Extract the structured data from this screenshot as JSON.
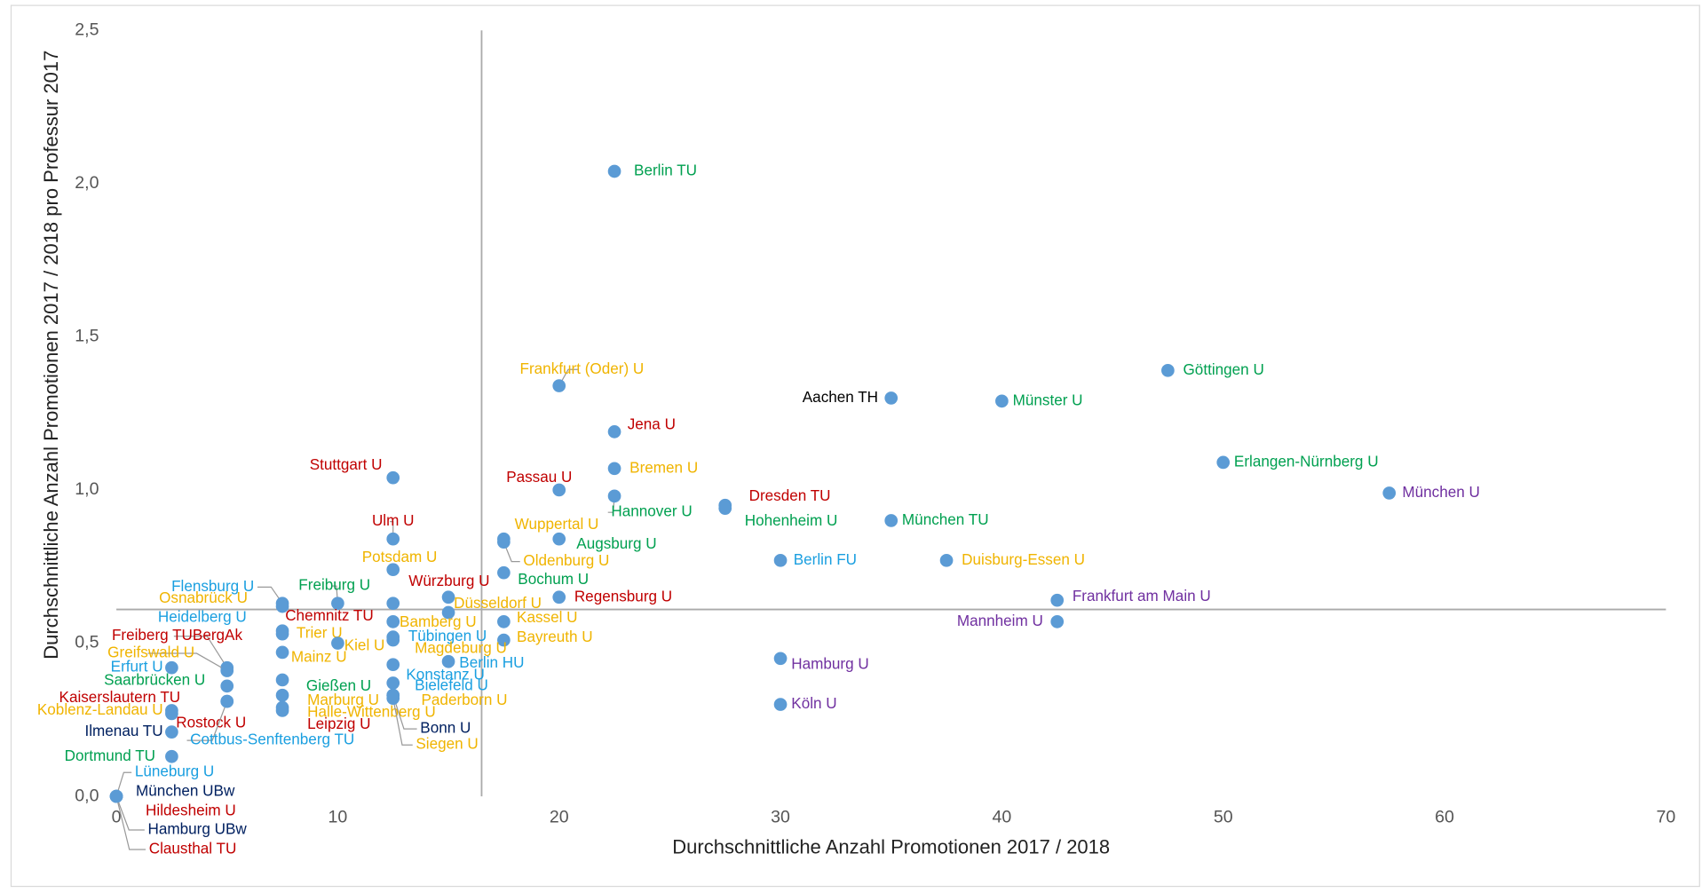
{
  "chart_data": {
    "type": "scatter",
    "x_label": "Durchschnittliche Anzahl Promotionen 2017 / 2018",
    "y_label": "Durchschnittliche Anzahl Promotionen 2017 / 2018 pro Professur 2017",
    "xlim": [
      0,
      70
    ],
    "ylim": [
      0,
      2.5
    ],
    "xticks": [
      0,
      10,
      20,
      30,
      40,
      50,
      60,
      70
    ],
    "yticks": [
      {
        "value": 0,
        "label": "0,0"
      },
      {
        "value": 0.5,
        "label": "0,5"
      },
      {
        "value": 1,
        "label": "1,0"
      },
      {
        "value": 1.5,
        "label": "1,5"
      },
      {
        "value": 2,
        "label": "2,0"
      },
      {
        "value": 2.5,
        "label": "2,5"
      }
    ],
    "reference_x": 16.5,
    "reference_y": 0.61,
    "marker_color": "#5b9bd5",
    "points": [
      {
        "name": "Berlin TU",
        "x": 22.5,
        "y": 2.04,
        "color": "#00a050"
      },
      {
        "name": "Göttingen U",
        "x": 47.5,
        "y": 1.39,
        "color": "#00a050"
      },
      {
        "name": "Frankfurt (Oder) U",
        "x": 20,
        "y": 1.34,
        "color": "#f0b400"
      },
      {
        "name": "Aachen TH",
        "x": 35,
        "y": 1.3,
        "color": "#000000"
      },
      {
        "name": "Münster U",
        "x": 40,
        "y": 1.29,
        "color": "#00a050"
      },
      {
        "name": "Jena U",
        "x": 22.5,
        "y": 1.19,
        "color": "#c00000"
      },
      {
        "name": "Bremen U",
        "x": 22.5,
        "y": 1.07,
        "color": "#f0b400"
      },
      {
        "name": "Erlangen-Nürnberg U",
        "x": 50,
        "y": 1.09,
        "color": "#00a050"
      },
      {
        "name": "Stuttgart U",
        "x": 12.5,
        "y": 1.04,
        "color": "#c00000"
      },
      {
        "name": "Passau U",
        "x": 20,
        "y": 1.0,
        "color": "#c00000"
      },
      {
        "name": "München U",
        "x": 57.5,
        "y": 0.99,
        "color": "#7030a0"
      },
      {
        "name": "Hannover U",
        "x": 22.5,
        "y": 0.98,
        "color": "#00a050"
      },
      {
        "name": "Dresden TU",
        "x": 27.5,
        "y": 0.95,
        "color": "#c00000"
      },
      {
        "name": "Hohenheim U",
        "x": 27.5,
        "y": 0.94,
        "color": "#00a050"
      },
      {
        "name": "München TU",
        "x": 35,
        "y": 0.9,
        "color": "#00a050"
      },
      {
        "name": "Ulm U",
        "x": 12.5,
        "y": 0.84,
        "color": "#c00000"
      },
      {
        "name": "Wuppertal U",
        "x": 17.5,
        "y": 0.84,
        "color": "#f0b400"
      },
      {
        "name": "Augsburg U",
        "x": 20,
        "y": 0.84,
        "color": "#00a050"
      },
      {
        "name": "Oldenburg U",
        "x": 17.5,
        "y": 0.83,
        "color": "#f0b400"
      },
      {
        "name": "Bochum U",
        "x": 17.5,
        "y": 0.73,
        "color": "#00a050"
      },
      {
        "name": "Berlin FU",
        "x": 30,
        "y": 0.77,
        "color": "#1a9fe0"
      },
      {
        "name": "Duisburg-Essen U",
        "x": 37.5,
        "y": 0.77,
        "color": "#f0b400"
      },
      {
        "name": "Potsdam U",
        "x": 12.5,
        "y": 0.74,
        "color": "#f0b400"
      },
      {
        "name": "Würzburg U",
        "x": 15,
        "y": 0.65,
        "color": "#c00000"
      },
      {
        "name": "Regensburg U",
        "x": 20,
        "y": 0.65,
        "color": "#c00000"
      },
      {
        "name": "Frankfurt am Main U",
        "x": 42.5,
        "y": 0.64,
        "color": "#7030a0"
      },
      {
        "name": "Flensburg U",
        "x": 7.5,
        "y": 0.63,
        "color": "#1a9fe0"
      },
      {
        "name": "Freiburg U",
        "x": 10,
        "y": 0.63,
        "color": "#00a050"
      },
      {
        "name": "Chemnitz TU",
        "x": 12.5,
        "y": 0.63,
        "color": "#c00000"
      },
      {
        "name": "Osnabrück U",
        "x": 7.5,
        "y": 0.62,
        "color": "#f0b400"
      },
      {
        "name": "Düsseldorf U",
        "x": 15,
        "y": 0.6,
        "color": "#f0b400"
      },
      {
        "name": "Kassel U",
        "x": 17.5,
        "y": 0.57,
        "color": "#f0b400"
      },
      {
        "name": "Bamberg U",
        "x": 12.5,
        "y": 0.57,
        "color": "#f0b400"
      },
      {
        "name": "Mannheim U",
        "x": 42.5,
        "y": 0.57,
        "color": "#7030a0"
      },
      {
        "name": "Heidelberg U",
        "x": 7.5,
        "y": 0.54,
        "color": "#1a9fe0"
      },
      {
        "name": "Trier U",
        "x": 7.5,
        "y": 0.53,
        "color": "#f0b400"
      },
      {
        "name": "Tübingen U",
        "x": 12.5,
        "y": 0.52,
        "color": "#1a9fe0"
      },
      {
        "name": "Bayreuth U",
        "x": 17.5,
        "y": 0.51,
        "color": "#f0b400"
      },
      {
        "name": "Kiel U",
        "x": 10,
        "y": 0.5,
        "color": "#f0b400"
      },
      {
        "name": "Magdeburg U",
        "x": 12.5,
        "y": 0.51,
        "color": "#f0b400"
      },
      {
        "name": "Freiberg TUBergAk",
        "x": 5,
        "y": 0.42,
        "color": "#c00000"
      },
      {
        "name": "Greifswald U",
        "x": 5,
        "y": 0.41,
        "color": "#f0b400"
      },
      {
        "name": "Mainz U",
        "x": 7.5,
        "y": 0.47,
        "color": "#f0b400"
      },
      {
        "name": "Hamburg U",
        "x": 30,
        "y": 0.45,
        "color": "#7030a0"
      },
      {
        "name": "Berlin HU",
        "x": 15,
        "y": 0.44,
        "color": "#1a9fe0"
      },
      {
        "name": "Erfurt U",
        "x": 2.5,
        "y": 0.42,
        "color": "#1a9fe0"
      },
      {
        "name": "Konstanz U",
        "x": 12.5,
        "y": 0.43,
        "color": "#1a9fe0"
      },
      {
        "name": "Gießen U",
        "x": 7.5,
        "y": 0.38,
        "color": "#00a050"
      },
      {
        "name": "Saarbrücken U",
        "x": 5,
        "y": 0.36,
        "color": "#00a050"
      },
      {
        "name": "Bielefeld U",
        "x": 12.5,
        "y": 0.37,
        "color": "#1a9fe0"
      },
      {
        "name": "Kaiserslautern TU",
        "x": 5,
        "y": 0.31,
        "color": "#c00000"
      },
      {
        "name": "Marburg U",
        "x": 7.5,
        "y": 0.33,
        "color": "#f0b400"
      },
      {
        "name": "Paderborn U",
        "x": 12.5,
        "y": 0.33,
        "color": "#f0b400"
      },
      {
        "name": "Köln U",
        "x": 30,
        "y": 0.3,
        "color": "#7030a0"
      },
      {
        "name": "Koblenz-Landau U",
        "x": 2.5,
        "y": 0.28,
        "color": "#f0b400"
      },
      {
        "name": "Halle-Wittenberg U",
        "x": 7.5,
        "y": 0.29,
        "color": "#f0b400"
      },
      {
        "name": "Rostock U",
        "x": 2.5,
        "y": 0.27,
        "color": "#c00000"
      },
      {
        "name": "Ilmenau TU",
        "x": 2.5,
        "y": 0.21,
        "color": "#002060"
      },
      {
        "name": "Leipzig U",
        "x": 7.5,
        "y": 0.28,
        "color": "#c00000"
      },
      {
        "name": "Cottbus-Senftenberg TU",
        "x": 5,
        "y": 0.31,
        "color": "#1a9fe0"
      },
      {
        "name": "Bonn U",
        "x": 12.5,
        "y": 0.33,
        "color": "#002060"
      },
      {
        "name": "Siegen U",
        "x": 12.5,
        "y": 0.32,
        "color": "#f0b400"
      },
      {
        "name": "Dortmund TU",
        "x": 2.5,
        "y": 0.13,
        "color": "#00a050"
      },
      {
        "name": "Lüneburg U",
        "x": 0,
        "y": 0,
        "color": "#1a9fe0"
      },
      {
        "name": "München UBw",
        "x": 0,
        "y": 0,
        "color": "#002060"
      },
      {
        "name": "Hildesheim U",
        "x": 0,
        "y": 0,
        "color": "#c00000"
      },
      {
        "name": "Hamburg UBw",
        "x": 0,
        "y": 0,
        "color": "#002060"
      },
      {
        "name": "Clausthal TU",
        "x": 0,
        "y": 0,
        "color": "#c00000"
      }
    ]
  }
}
